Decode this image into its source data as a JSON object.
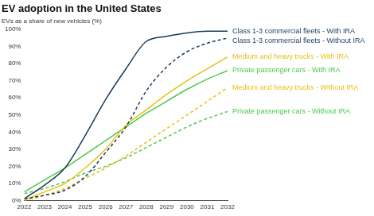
{
  "chart_data": {
    "type": "line",
    "title": "EV adoption in the United States",
    "subtitle": "EVs as a share of new vehicles (%)",
    "categories": [
      "2022",
      "2023",
      "2024",
      "2025",
      "2026",
      "2027",
      "2028",
      "2029",
      "2030",
      "2031",
      "2032"
    ],
    "series": [
      {
        "name": "Class 1-3 commercial fleets - With IRA",
        "color": "#1b3a5c",
        "line_style": "solid",
        "values": [
          1,
          9,
          19,
          38,
          59,
          77,
          93,
          96,
          98,
          99,
          99
        ]
      },
      {
        "name": "Class 1-3 commercial fleets - Without IRA",
        "color": "#1b3a5c",
        "line_style": "dashed",
        "values": [
          1,
          3,
          6,
          14,
          28,
          43,
          64,
          78,
          87,
          92,
          95
        ]
      },
      {
        "name": "Medium and heavy trucks - With IRA",
        "color": "#e8bf12",
        "line_style": "solid",
        "values": [
          0,
          5,
          10,
          19,
          30,
          44,
          53,
          62,
          70,
          77,
          84
        ]
      },
      {
        "name": "Medium and heavy trucks - Without IRA",
        "color": "#e8bf12",
        "line_style": "dashed",
        "values": [
          0,
          3,
          7,
          13,
          19,
          26,
          34,
          42,
          50,
          58,
          66
        ]
      },
      {
        "name": "Private passenger cars - With IRA",
        "color": "#4cc94c",
        "line_style": "solid",
        "values": [
          5,
          12,
          19,
          27,
          35,
          43,
          51,
          58,
          65,
          71,
          76
        ]
      },
      {
        "name": "Private passenger cars - Without IRA",
        "color": "#4cc94c",
        "line_style": "dashed",
        "values": [
          4,
          7,
          11,
          16,
          20,
          25,
          31,
          37,
          43,
          48,
          52
        ]
      }
    ],
    "ylim": [
      0,
      100
    ],
    "yticks": [
      {
        "value": 0,
        "label": "0%"
      },
      {
        "value": 10,
        "label": "10%"
      },
      {
        "value": 20,
        "label": "20%"
      },
      {
        "value": 30,
        "label": "30%"
      },
      {
        "value": 40,
        "label": "40%"
      },
      {
        "value": 50,
        "label": "50%"
      },
      {
        "value": 60,
        "label": "60%"
      },
      {
        "value": 70,
        "label": "70%"
      },
      {
        "value": 80,
        "label": "80%"
      },
      {
        "value": 90,
        "label": "90%"
      },
      {
        "value": 100,
        "label": "100%"
      }
    ],
    "grid": false,
    "marker": "none"
  }
}
